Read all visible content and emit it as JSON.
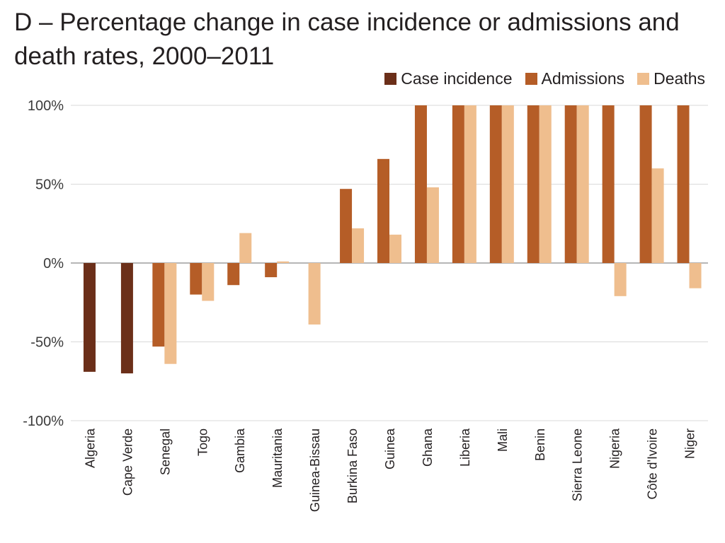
{
  "chart_data": {
    "type": "bar",
    "title_line1": "D –  Percentage change in case incidence or admissions and",
    "title_line2": "death rates, 2000–2011",
    "categories": [
      "Algeria",
      "Cape Verde",
      "Senegal",
      "Togo",
      "Gambia",
      "Mauritania",
      "Guinea-Bissau",
      "Burkina Faso",
      "Guinea",
      "Ghana",
      "Liberia",
      "Mali",
      "Benin",
      "Sierra Leone",
      "Nigeria",
      "Côte d'Ivoire",
      "Niger"
    ],
    "series": [
      {
        "name": "Case incidence",
        "color": "#6b2f19",
        "values": [
          -69,
          -70,
          null,
          null,
          null,
          null,
          null,
          null,
          null,
          null,
          null,
          null,
          null,
          null,
          null,
          null,
          null
        ]
      },
      {
        "name": "Admissions",
        "color": "#b55d27",
        "values": [
          null,
          null,
          -53,
          -20,
          -14,
          -9,
          null,
          47,
          66,
          100,
          100,
          100,
          100,
          100,
          100,
          100,
          100
        ]
      },
      {
        "name": "Deaths",
        "color": "#efbe8e",
        "values": [
          null,
          null,
          -64,
          -24,
          19,
          1,
          -39,
          22,
          18,
          48,
          100,
          100,
          100,
          100,
          -21,
          60,
          -16
        ]
      }
    ],
    "yticks": [
      "100%",
      "50%",
      "0%",
      "-50%",
      "-100%"
    ],
    "ytick_values": [
      100,
      50,
      0,
      -50,
      -100
    ],
    "ylim": [
      -100,
      100
    ],
    "grid": true,
    "legend_position": "top-right",
    "xlabel": "",
    "ylabel": ""
  }
}
